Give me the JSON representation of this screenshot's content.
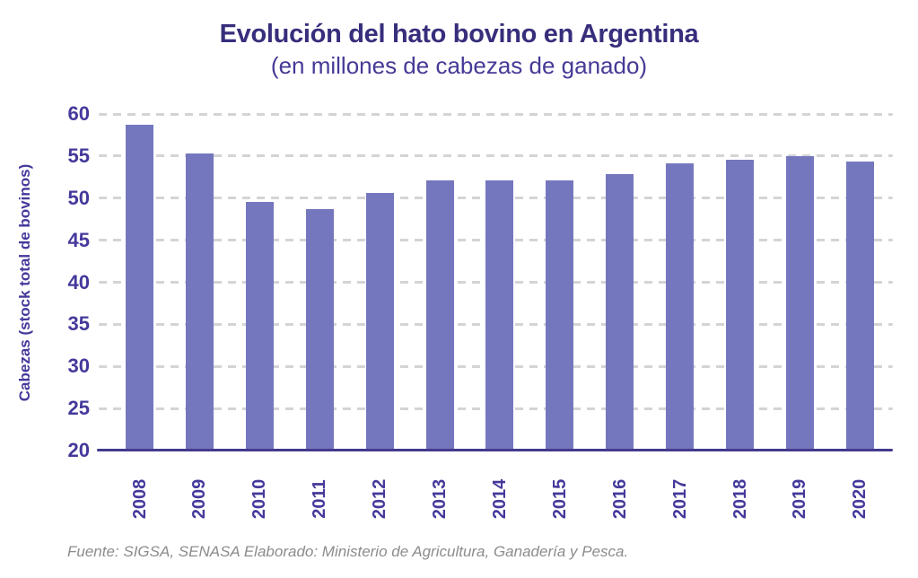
{
  "header": {
    "title": "Evolución del hato bovino en Argentina",
    "subtitle": "(en millones de cabezas de ganado)"
  },
  "footer": {
    "source": "Fuente: SIGSA, SENASA Elaborado: Ministerio de Agricultura, Ganadería y Pesca."
  },
  "colors": {
    "bar": "#7577be",
    "title_text": "#372e7c",
    "subtitle_text": "#453a96",
    "axis_text": "#44399b",
    "axis_line": "#433a8e",
    "gridline": "#d4d4d6",
    "source_text": "#8c8c8e",
    "background": "#ffffff"
  },
  "chart_data": {
    "type": "bar",
    "title": "Evolución del hato bovino en Argentina",
    "subtitle": "(en millones de cabezas de ganado)",
    "categories": [
      "2008",
      "2009",
      "2010",
      "2011",
      "2012",
      "2013",
      "2014",
      "2015",
      "2016",
      "2017",
      "2018",
      "2019",
      "2020"
    ],
    "values": [
      58.7,
      55.3,
      49.6,
      48.7,
      50.6,
      52.1,
      52.1,
      52.1,
      52.9,
      54.1,
      54.6,
      55.0,
      54.3
    ],
    "xlabel": "",
    "ylabel": "Cabezas (stock total de bovinos)",
    "ylim": [
      20,
      60
    ],
    "yticks": [
      20,
      25,
      30,
      35,
      40,
      45,
      50,
      55,
      60
    ],
    "grid": "horizontal-dashed",
    "legend": "none",
    "bar_color": "#7577be",
    "x_tick_rotation": 90
  }
}
